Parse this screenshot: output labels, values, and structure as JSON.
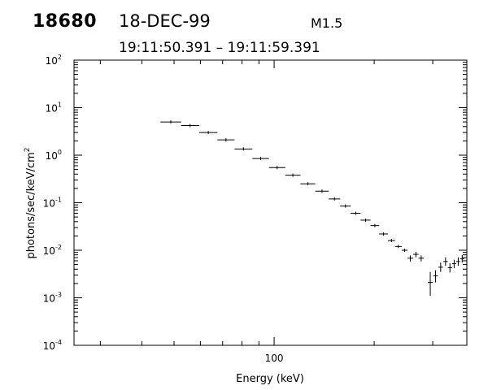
{
  "header": {
    "id": "18680",
    "date": "18-DEC-99",
    "goes_class": "M1.5",
    "time_range": "19:11:50.391  –  19:11:59.391"
  },
  "chart_data": {
    "type": "scatter",
    "title": "",
    "xlabel": "Energy (keV)",
    "ylabel_prefix": "photons/sec/keV/cm",
    "ylabel_sup": "2",
    "xscale": "log",
    "yscale": "log",
    "xlim": [
      25,
      380
    ],
    "ylim": [
      0.0001,
      100
    ],
    "x_tick_labels": [
      "100"
    ],
    "y_tick_labels": [
      {
        "base": "10",
        "exp": "-4"
      },
      {
        "base": "10",
        "exp": "-3"
      },
      {
        "base": "10",
        "exp": "-2"
      },
      {
        "base": "10",
        "exp": "-1"
      },
      {
        "base": "10",
        "exp": "0"
      },
      {
        "base": "10",
        "exp": "1"
      },
      {
        "base": "10",
        "exp": "2"
      }
    ],
    "grid": false,
    "line_color": "#000000",
    "series": [
      {
        "points": [
          {
            "x_lo": 45.5,
            "x_hi": 52.5,
            "y": 5.0
          },
          {
            "x_lo": 52.5,
            "x_hi": 59.5,
            "y": 4.2
          },
          {
            "x_lo": 59.5,
            "x_hi": 67.5,
            "y": 3.0
          },
          {
            "x_lo": 67.5,
            "x_hi": 76.0,
            "y": 2.1
          },
          {
            "x_lo": 76.0,
            "x_hi": 86.0,
            "y": 1.35
          },
          {
            "x_lo": 86.0,
            "x_hi": 96.5,
            "y": 0.85
          },
          {
            "x_lo": 96.5,
            "x_hi": 108.0,
            "y": 0.55
          },
          {
            "x_lo": 108.0,
            "x_hi": 120.0,
            "y": 0.38
          },
          {
            "x_lo": 120.0,
            "x_hi": 133.0,
            "y": 0.25
          },
          {
            "x_lo": 133.0,
            "x_hi": 146.0,
            "y": 0.175
          },
          {
            "x_lo": 146.0,
            "x_hi": 158.0,
            "y": 0.12
          },
          {
            "x_lo": 158.0,
            "x_hi": 170.0,
            "y": 0.085
          },
          {
            "x_lo": 170.0,
            "x_hi": 182.0,
            "y": 0.06
          },
          {
            "x_lo": 182.0,
            "x_hi": 195.0,
            "y": 0.043
          },
          {
            "x_lo": 195.0,
            "x_hi": 207.0,
            "y": 0.033
          },
          {
            "x_lo": 207.0,
            "x_hi": 220.0,
            "y": 0.022
          },
          {
            "x_lo": 220.0,
            "x_hi": 231.0,
            "y": 0.016
          },
          {
            "x_lo": 231.0,
            "x_hi": 242.0,
            "y": 0.012
          },
          {
            "x_lo": 242.0,
            "x_hi": 252.0,
            "y": 0.01
          },
          {
            "x_lo": 252.0,
            "x_hi": 262.0,
            "y": 0.0068,
            "y_lo": 0.0058,
            "y_hi": 0.0078
          },
          {
            "x_lo": 262.0,
            "x_hi": 272.0,
            "y": 0.0082,
            "y_lo": 0.0071,
            "y_hi": 0.0093
          },
          {
            "x_lo": 272.0,
            "x_hi": 282.0,
            "y": 0.0068,
            "y_lo": 0.0058,
            "y_hi": 0.0078
          },
          {
            "x_lo": 290.0,
            "x_hi": 300.0,
            "y": 0.0021,
            "y_lo": 0.0011,
            "y_hi": 0.0035
          },
          {
            "x_lo": 301.0,
            "x_hi": 311.0,
            "y": 0.0029,
            "y_lo": 0.0021,
            "y_hi": 0.0038
          },
          {
            "x_lo": 312.0,
            "x_hi": 322.0,
            "y": 0.0044,
            "y_lo": 0.0035,
            "y_hi": 0.0055
          },
          {
            "x_lo": 323.0,
            "x_hi": 333.0,
            "y": 0.0058,
            "y_lo": 0.0047,
            "y_hi": 0.0071
          },
          {
            "x_lo": 333.0,
            "x_hi": 343.0,
            "y": 0.0043,
            "y_lo": 0.0034,
            "y_hi": 0.0053
          },
          {
            "x_lo": 343.0,
            "x_hi": 353.0,
            "y": 0.0052,
            "y_lo": 0.0042,
            "y_hi": 0.0063
          },
          {
            "x_lo": 353.0,
            "x_hi": 363.0,
            "y": 0.0058,
            "y_lo": 0.0047,
            "y_hi": 0.0071
          },
          {
            "x_lo": 363.0,
            "x_hi": 373.0,
            "y": 0.0066,
            "y_lo": 0.0055,
            "y_hi": 0.0079
          }
        ]
      }
    ]
  }
}
